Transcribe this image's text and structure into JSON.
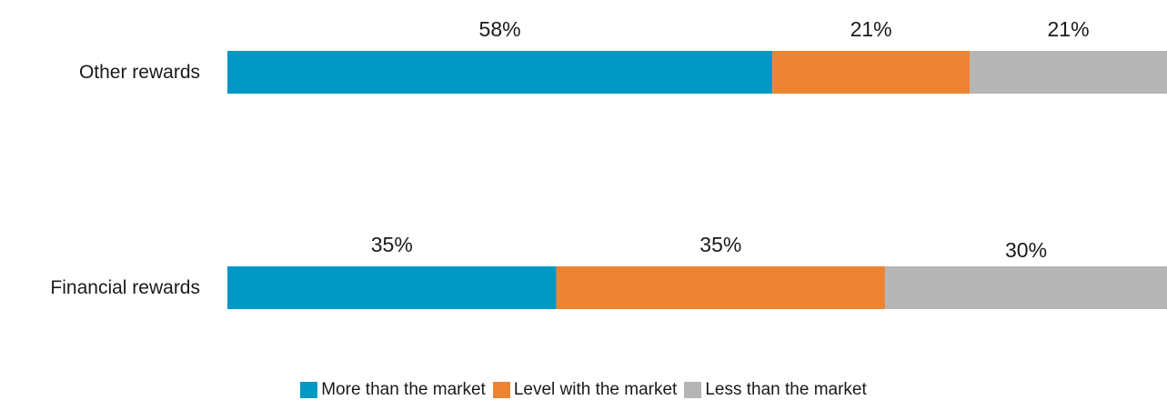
{
  "chart_data": {
    "type": "bar",
    "orientation": "horizontal",
    "stacked": true,
    "categories": [
      "Other rewards",
      "Financial rewards"
    ],
    "series": [
      {
        "name": "More than the market",
        "values": [
          58,
          35
        ],
        "color": "#0099C4"
      },
      {
        "name": "Level with the market",
        "values": [
          21,
          35
        ],
        "color": "#ED8433"
      },
      {
        "name": "Less than the market",
        "values": [
          21,
          30
        ],
        "color": "#B5B5B5"
      }
    ],
    "value_suffix": "%",
    "xlim": [
      0,
      100
    ],
    "grid": false,
    "axis_lines": false,
    "legend_position": "bottom-center"
  }
}
